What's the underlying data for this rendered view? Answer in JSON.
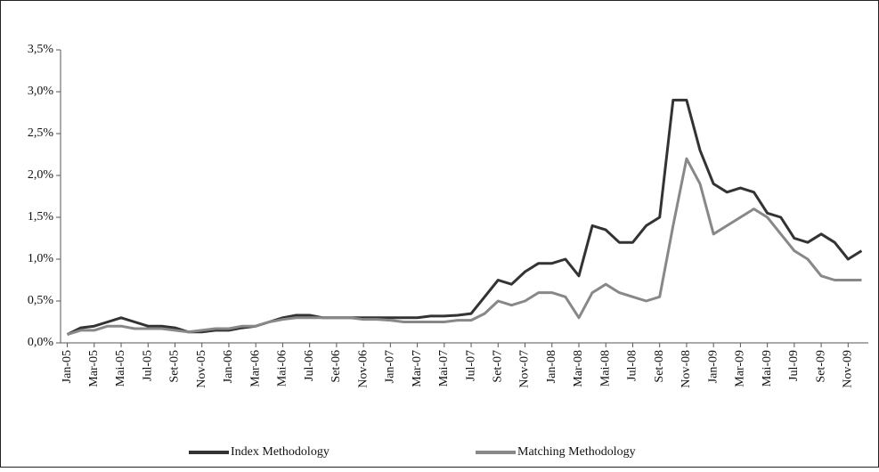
{
  "chart_data": {
    "type": "line",
    "categories": [
      "Jan-05",
      null,
      "Mar-05",
      null,
      "Mai-05",
      null,
      "Jul-05",
      null,
      "Set-05",
      null,
      "Nov-05",
      null,
      "Jan-06",
      null,
      "Mar-06",
      null,
      "Mai-06",
      null,
      "Jul-06",
      null,
      "Set-06",
      null,
      "Nov-06",
      null,
      "Jan-07",
      null,
      "Mar-07",
      null,
      "Mai-07",
      null,
      "Jul-07",
      null,
      "Set-07",
      null,
      "Nov-07",
      null,
      "Jan-08",
      null,
      "Mar-08",
      null,
      "Mai-08",
      null,
      "Jul-08",
      null,
      "Set-08",
      null,
      "Nov-08",
      null,
      "Jan-09",
      null,
      "Mar-09",
      null,
      "Mai-09",
      null,
      "Jul-09",
      null,
      "Set-09",
      null,
      "Nov-09",
      null
    ],
    "series": [
      {
        "name": "Index Methodology",
        "color": "#333333",
        "values": [
          0.1,
          0.18,
          0.2,
          0.25,
          0.3,
          0.25,
          0.2,
          0.2,
          0.18,
          0.13,
          0.13,
          0.15,
          0.15,
          0.18,
          0.2,
          0.25,
          0.3,
          0.33,
          0.33,
          0.3,
          0.3,
          0.3,
          0.3,
          0.3,
          0.3,
          0.3,
          0.3,
          0.32,
          0.32,
          0.33,
          0.35,
          0.55,
          0.75,
          0.7,
          0.85,
          0.95,
          0.95,
          1.0,
          0.8,
          1.4,
          1.35,
          1.2,
          1.2,
          1.4,
          1.5,
          2.9,
          2.9,
          2.3,
          1.9,
          1.8,
          1.85,
          1.8,
          1.55,
          1.5,
          1.25,
          1.2,
          1.3,
          1.2,
          1.0,
          1.1
        ]
      },
      {
        "name": "Matching Methodology",
        "color": "#888888",
        "values": [
          0.1,
          0.15,
          0.15,
          0.2,
          0.2,
          0.17,
          0.17,
          0.17,
          0.15,
          0.13,
          0.15,
          0.17,
          0.17,
          0.2,
          0.2,
          0.25,
          0.28,
          0.3,
          0.3,
          0.3,
          0.3,
          0.3,
          0.28,
          0.28,
          0.27,
          0.25,
          0.25,
          0.25,
          0.25,
          0.27,
          0.27,
          0.35,
          0.5,
          0.45,
          0.5,
          0.6,
          0.6,
          0.55,
          0.3,
          0.6,
          0.7,
          0.6,
          0.55,
          0.5,
          0.55,
          1.4,
          2.2,
          1.9,
          1.3,
          1.4,
          1.5,
          1.6,
          1.5,
          1.3,
          1.1,
          1.0,
          0.8,
          0.75,
          0.75,
          0.75
        ]
      }
    ],
    "ylim": [
      0,
      3.5
    ],
    "yticks": [
      {
        "value": 0,
        "label": "0,0%"
      },
      {
        "value": 0.5,
        "label": "0,5%"
      },
      {
        "value": 1,
        "label": "1,0%"
      },
      {
        "value": 1.5,
        "label": "1,5%"
      },
      {
        "value": 2,
        "label": "2,0%"
      },
      {
        "value": 2.5,
        "label": "2,5%"
      },
      {
        "value": 3,
        "label": "3,0%"
      },
      {
        "value": 3.5,
        "label": "3,5%"
      }
    ],
    "legend": "bottom"
  }
}
